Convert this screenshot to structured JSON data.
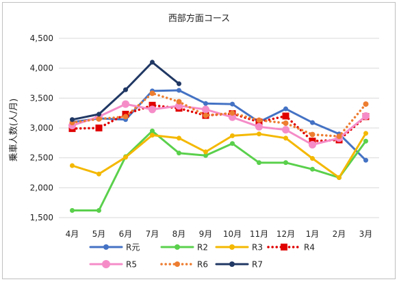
{
  "chart_data": {
    "type": "line",
    "title": "西部方面コース",
    "xlabel": "",
    "ylabel": "乗車人数(人/月)",
    "categories": [
      "4月",
      "5月",
      "6月",
      "7月",
      "8月",
      "9月",
      "10月",
      "11月",
      "12月",
      "1月",
      "2月",
      "3月"
    ],
    "ylim": [
      1500,
      4500
    ],
    "yticks": [
      1500,
      2000,
      2500,
      3000,
      3500,
      4000,
      4500
    ],
    "ytick_labels": [
      "1,500",
      "2,000",
      "2,500",
      "3,000",
      "3,500",
      "4,000",
      "4,500"
    ],
    "grid": "horizontal",
    "legend_position": "bottom",
    "series": [
      {
        "name": "R元",
        "color": "#4472c4",
        "style": "solid",
        "marker": "circle",
        "values": [
          3100,
          3160,
          3140,
          3620,
          3630,
          3410,
          3400,
          3100,
          3320,
          3090,
          2900,
          2460
        ]
      },
      {
        "name": "R2",
        "color": "#5ad04c",
        "style": "solid",
        "marker": "circle",
        "values": [
          1620,
          1620,
          2520,
          2950,
          2580,
          2540,
          2740,
          2420,
          2420,
          2310,
          2170,
          2780
        ]
      },
      {
        "name": "R3",
        "color": "#f4b800",
        "style": "solid",
        "marker": "circle",
        "values": [
          2370,
          2230,
          2510,
          2880,
          2830,
          2600,
          2870,
          2900,
          2830,
          2490,
          2170,
          2910
        ]
      },
      {
        "name": "R4",
        "color": "#e00000",
        "style": "dotted",
        "marker": "square",
        "values": [
          2990,
          3000,
          3230,
          3380,
          3330,
          3210,
          3240,
          3100,
          3200,
          2780,
          2800,
          3190
        ]
      },
      {
        "name": "R5",
        "color": "#f58cc8",
        "style": "solid",
        "marker": "circle",
        "values": [
          3040,
          3190,
          3400,
          3310,
          3370,
          3310,
          3180,
          3020,
          2970,
          2720,
          2830,
          3200
        ]
      },
      {
        "name": "R6",
        "color": "#ed7d31",
        "style": "dotted",
        "marker": "circle",
        "values": [
          3090,
          3150,
          3190,
          3580,
          3440,
          3210,
          3250,
          3130,
          3080,
          2890,
          2860,
          3400
        ]
      },
      {
        "name": "R7",
        "color": "#203864",
        "style": "solid",
        "marker": "circle",
        "values": [
          3140,
          3230,
          3640,
          4100,
          3740,
          null,
          null,
          null,
          null,
          null,
          null,
          null
        ]
      }
    ]
  }
}
